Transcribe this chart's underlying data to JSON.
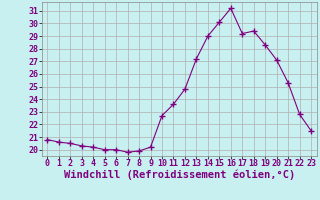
{
  "x": [
    0,
    1,
    2,
    3,
    4,
    5,
    6,
    7,
    8,
    9,
    10,
    11,
    12,
    13,
    14,
    15,
    16,
    17,
    18,
    19,
    20,
    21,
    22,
    23
  ],
  "y": [
    20.8,
    20.6,
    20.5,
    20.3,
    20.2,
    20.0,
    20.0,
    19.8,
    19.9,
    20.2,
    22.7,
    23.6,
    24.8,
    27.2,
    29.0,
    30.1,
    31.2,
    29.2,
    29.4,
    28.3,
    27.1,
    25.3,
    22.8,
    21.5
  ],
  "line_color": "#800080",
  "marker": "+",
  "marker_size": 4,
  "marker_linewidth": 1.0,
  "background_color": "#c8f0f0",
  "grid_color": "#b0b0b0",
  "xlabel": "Windchill (Refroidissement éolien,°C)",
  "tick_color": "#800080",
  "tick_fontsize": 6,
  "xlabel_fontsize": 7.5,
  "ylabel_ticks": [
    20,
    21,
    22,
    23,
    24,
    25,
    26,
    27,
    28,
    29,
    30,
    31
  ],
  "xlim": [
    -0.5,
    23.5
  ],
  "ylim": [
    19.5,
    31.7
  ]
}
